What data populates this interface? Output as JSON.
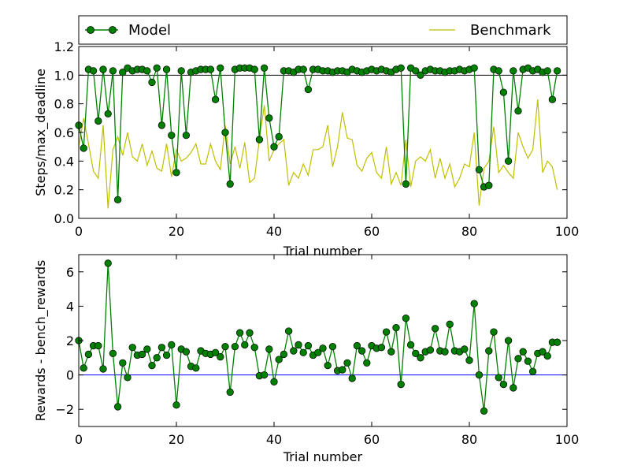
{
  "legend": {
    "model_label": "Model",
    "benchmark_label": "Benchmark",
    "placement": "top, above upper plot"
  },
  "colors": {
    "model": "#008000",
    "benchmark": "#bfbf00",
    "zero_line": "#0000ff",
    "reference_line": "#000000"
  },
  "chart_data": [
    {
      "type": "line",
      "xlabel": "Trial number",
      "ylabel": "Steps/max_deadline",
      "xlim": [
        0,
        100
      ],
      "ylim": [
        0.0,
        1.2
      ],
      "xticks": [
        "0",
        "20",
        "40",
        "60",
        "80",
        "100"
      ],
      "yticks": [
        "0.0",
        "0.2",
        "0.4",
        "0.6",
        "0.8",
        "1.0",
        "1.2"
      ],
      "xtick_values": [
        0,
        20,
        40,
        60,
        80,
        100
      ],
      "ytick_values": [
        0.0,
        0.2,
        0.4,
        0.6,
        0.8,
        1.0,
        1.2
      ],
      "reference_line": 1.0,
      "grid": false,
      "series": [
        {
          "name": "Model",
          "marker": "circle",
          "x": [
            0,
            1,
            2,
            3,
            4,
            5,
            6,
            7,
            8,
            9,
            10,
            11,
            12,
            13,
            14,
            15,
            16,
            17,
            18,
            19,
            20,
            21,
            22,
            23,
            24,
            25,
            26,
            27,
            28,
            29,
            30,
            31,
            32,
            33,
            34,
            35,
            36,
            37,
            38,
            39,
            40,
            41,
            42,
            43,
            44,
            45,
            46,
            47,
            48,
            49,
            50,
            51,
            52,
            53,
            54,
            55,
            56,
            57,
            58,
            59,
            60,
            61,
            62,
            63,
            64,
            65,
            66,
            67,
            68,
            69,
            70,
            71,
            72,
            73,
            74,
            75,
            76,
            77,
            78,
            79,
            80,
            81,
            82,
            83,
            84,
            85,
            86,
            87,
            88,
            89,
            90,
            91,
            92,
            93,
            94,
            95,
            96,
            97,
            98
          ],
          "values": [
            0.65,
            0.49,
            1.04,
            1.03,
            0.68,
            1.04,
            0.73,
            1.03,
            0.13,
            1.02,
            1.05,
            1.03,
            1.04,
            1.04,
            1.03,
            0.95,
            1.05,
            0.65,
            1.04,
            0.58,
            0.32,
            1.03,
            0.58,
            1.02,
            1.03,
            1.04,
            1.04,
            1.04,
            0.83,
            1.05,
            0.6,
            0.24,
            1.04,
            1.05,
            1.05,
            1.05,
            1.04,
            0.55,
            1.05,
            0.7,
            0.5,
            0.57,
            1.03,
            1.03,
            1.02,
            1.04,
            1.04,
            0.9,
            1.04,
            1.04,
            1.03,
            1.03,
            1.02,
            1.03,
            1.03,
            1.02,
            1.04,
            1.03,
            1.02,
            1.03,
            1.04,
            1.03,
            1.04,
            1.03,
            1.02,
            1.04,
            1.05,
            0.24,
            1.05,
            1.03,
            1.0,
            1.03,
            1.04,
            1.03,
            1.03,
            1.02,
            1.03,
            1.03,
            1.04,
            1.03,
            1.04,
            1.05,
            0.34,
            0.22,
            0.23,
            1.04,
            1.03,
            0.88,
            0.4,
            1.03,
            0.75,
            1.04,
            1.05,
            1.03,
            1.04,
            1.02,
            1.03,
            0.83,
            1.03
          ]
        },
        {
          "name": "Benchmark",
          "marker": "none",
          "x": [
            0,
            1,
            2,
            3,
            4,
            5,
            6,
            7,
            8,
            9,
            10,
            11,
            12,
            13,
            14,
            15,
            16,
            17,
            18,
            19,
            20,
            21,
            22,
            23,
            24,
            25,
            26,
            27,
            28,
            29,
            30,
            31,
            32,
            33,
            34,
            35,
            36,
            37,
            38,
            39,
            40,
            41,
            42,
            43,
            44,
            45,
            46,
            47,
            48,
            49,
            50,
            51,
            52,
            53,
            54,
            55,
            56,
            57,
            58,
            59,
            60,
            61,
            62,
            63,
            64,
            65,
            66,
            67,
            68,
            69,
            70,
            71,
            72,
            73,
            74,
            75,
            76,
            77,
            78,
            79,
            80,
            81,
            82,
            83,
            84,
            85,
            86,
            87,
            88,
            89,
            90,
            91,
            92,
            93,
            94,
            95,
            96,
            97,
            98
          ],
          "values": [
            0.5,
            0.7,
            0.52,
            0.33,
            0.28,
            0.65,
            0.07,
            0.48,
            0.57,
            0.44,
            0.6,
            0.43,
            0.4,
            0.52,
            0.37,
            0.47,
            0.35,
            0.33,
            0.52,
            0.29,
            0.48,
            0.4,
            0.42,
            0.46,
            0.52,
            0.38,
            0.38,
            0.52,
            0.4,
            0.34,
            0.65,
            0.38,
            0.5,
            0.35,
            0.53,
            0.25,
            0.28,
            0.55,
            0.79,
            0.4,
            0.48,
            0.52,
            0.55,
            0.23,
            0.32,
            0.28,
            0.38,
            0.3,
            0.48,
            0.48,
            0.5,
            0.65,
            0.36,
            0.5,
            0.74,
            0.56,
            0.55,
            0.37,
            0.33,
            0.42,
            0.46,
            0.32,
            0.28,
            0.5,
            0.24,
            0.32,
            0.23,
            0.55,
            0.22,
            0.4,
            0.43,
            0.4,
            0.48,
            0.28,
            0.42,
            0.28,
            0.38,
            0.22,
            0.28,
            0.38,
            0.36,
            0.6,
            0.09,
            0.35,
            0.4,
            0.64,
            0.32,
            0.37,
            0.32,
            0.28,
            0.6,
            0.5,
            0.42,
            0.48,
            0.83,
            0.32,
            0.4,
            0.36,
            0.2
          ]
        }
      ]
    },
    {
      "type": "line",
      "xlabel": "Trial number",
      "ylabel": "Rewards - bench_rewards",
      "xlim": [
        0,
        100
      ],
      "ylim": [
        -3,
        7
      ],
      "xticks": [
        "0",
        "20",
        "40",
        "60",
        "80",
        "100"
      ],
      "yticks": [
        "−2",
        "0",
        "2",
        "4",
        "6"
      ],
      "xtick_values": [
        0,
        20,
        40,
        60,
        80,
        100
      ],
      "ytick_values": [
        -2,
        0,
        2,
        4,
        6
      ],
      "reference_line": 0,
      "grid": false,
      "series": [
        {
          "marker": "circle",
          "x": [
            0,
            1,
            2,
            3,
            4,
            5,
            6,
            7,
            8,
            9,
            10,
            11,
            12,
            13,
            14,
            15,
            16,
            17,
            18,
            19,
            20,
            21,
            22,
            23,
            24,
            25,
            26,
            27,
            28,
            29,
            30,
            31,
            32,
            33,
            34,
            35,
            36,
            37,
            38,
            39,
            40,
            41,
            42,
            43,
            44,
            45,
            46,
            47,
            48,
            49,
            50,
            51,
            52,
            53,
            54,
            55,
            56,
            57,
            58,
            59,
            60,
            61,
            62,
            63,
            64,
            65,
            66,
            67,
            68,
            69,
            70,
            71,
            72,
            73,
            74,
            75,
            76,
            77,
            78,
            79,
            80,
            81,
            82,
            83,
            84,
            85,
            86,
            87,
            88,
            89,
            90,
            91,
            92,
            93,
            94,
            95,
            96,
            97,
            98
          ],
          "values": [
            2.0,
            0.4,
            1.2,
            1.7,
            1.7,
            0.35,
            6.5,
            1.25,
            -1.85,
            0.7,
            -0.15,
            1.6,
            1.15,
            1.2,
            1.5,
            0.55,
            1.0,
            1.6,
            1.15,
            1.75,
            -1.75,
            1.5,
            1.35,
            0.5,
            0.4,
            1.4,
            1.25,
            1.2,
            1.3,
            1.05,
            1.65,
            -1.0,
            1.65,
            2.45,
            1.75,
            2.45,
            1.6,
            -0.05,
            0.0,
            1.5,
            -0.4,
            0.9,
            1.2,
            2.55,
            1.4,
            1.75,
            1.3,
            1.7,
            1.15,
            1.3,
            1.55,
            0.55,
            1.65,
            0.25,
            0.3,
            0.7,
            -0.2,
            1.7,
            1.4,
            0.7,
            1.7,
            1.55,
            1.6,
            2.5,
            1.35,
            2.75,
            -0.55,
            3.3,
            1.75,
            1.25,
            1.0,
            1.35,
            1.45,
            2.7,
            1.4,
            1.35,
            2.95,
            1.4,
            1.35,
            1.5,
            0.85,
            4.15,
            0.0,
            -2.1,
            1.4,
            2.5,
            -0.15,
            -0.55,
            2.0,
            -0.75,
            0.95,
            1.35,
            0.8,
            0.2,
            1.25,
            1.35,
            1.1,
            1.9,
            1.9
          ]
        }
      ]
    }
  ]
}
